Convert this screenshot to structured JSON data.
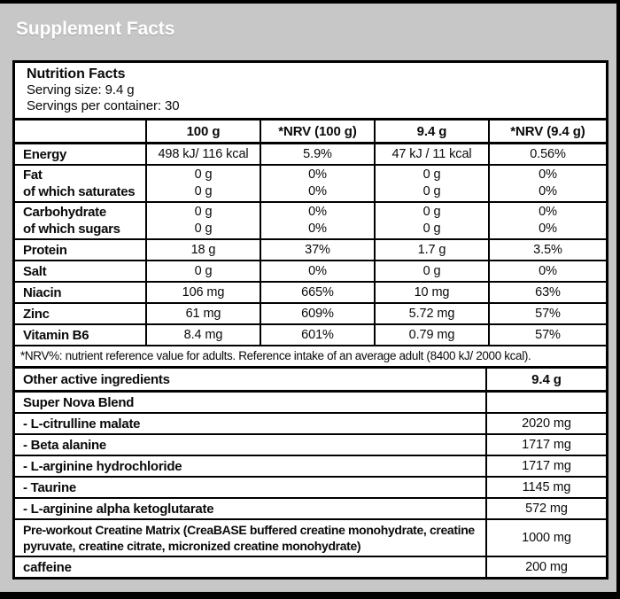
{
  "page": {
    "title": "Supplement Facts"
  },
  "colors": {
    "background": "#c7c7c7",
    "frame": "#000000",
    "panel": "#ffffff",
    "title_text": "#ffffff",
    "body_text": "#0a0a0a"
  },
  "nutrition": {
    "title": "Nutrition Facts",
    "serving_size": "Serving size: 9.4 g",
    "servings_per_container": "Servings per container: 30",
    "columns": [
      "",
      "100 g",
      "*NRV (100 g)",
      "9.4 g",
      "*NRV (9.4 g)"
    ],
    "rows": [
      {
        "lines": [
          {
            "label": "Energy",
            "values": [
              "498 kJ/ 116 kcal",
              "5.9%",
              "47 kJ / 11 kcal",
              "0.56%"
            ]
          }
        ]
      },
      {
        "lines": [
          {
            "label": "Fat",
            "values": [
              "0 g",
              "0%",
              "0 g",
              "0%"
            ]
          },
          {
            "label": "of which saturates",
            "values": [
              "0 g",
              "0%",
              "0 g",
              "0%"
            ]
          }
        ]
      },
      {
        "lines": [
          {
            "label": "Carbohydrate",
            "values": [
              "0 g",
              "0%",
              "0 g",
              "0%"
            ]
          },
          {
            "label": "of which sugars",
            "values": [
              "0 g",
              "0%",
              "0 g",
              "0%"
            ]
          }
        ]
      },
      {
        "lines": [
          {
            "label": "Protein",
            "values": [
              "18 g",
              "37%",
              "1.7 g",
              "3.5%"
            ]
          }
        ]
      },
      {
        "lines": [
          {
            "label": "Salt",
            "values": [
              "0 g",
              "0%",
              "0 g",
              "0%"
            ]
          }
        ]
      },
      {
        "lines": [
          {
            "label": "Niacin",
            "values": [
              "106 mg",
              "665%",
              "10 mg",
              "63%"
            ]
          }
        ]
      },
      {
        "lines": [
          {
            "label": "Zinc",
            "values": [
              "61 mg",
              "609%",
              "5.72 mg",
              "57%"
            ]
          }
        ]
      },
      {
        "lines": [
          {
            "label": "Vitamin B6",
            "values": [
              "8.4 mg",
              "601%",
              "0.79 mg",
              "57%"
            ]
          }
        ]
      }
    ],
    "footnote": "*NRV%: nutrient reference value for adults. Reference intake of an average adult (8400 kJ/ 2000 kcal)."
  },
  "other_ingredients": {
    "header": {
      "label": "Other active ingredients",
      "value": "9.4 g"
    },
    "rows": [
      {
        "label": "Super Nova Blend",
        "value": ""
      },
      {
        "label": "- L-citrulline malate",
        "value": "2020 mg"
      },
      {
        "label": "- Beta alanine",
        "value": "1717 mg"
      },
      {
        "label": "- L-arginine hydrochloride",
        "value": "1717 mg"
      },
      {
        "label": "- Taurine",
        "value": "1145 mg"
      },
      {
        "label": "- L-arginine alpha ketoglutarate",
        "value": "572 mg"
      },
      {
        "label": "Pre-workout Creatine Matrix (CreaBASE buffered creatine monohydrate, creatine pyruvate, creatine citrate, micronized creatine monohydrate)",
        "value": "1000 mg"
      },
      {
        "label": "caffeine",
        "value": "200 mg"
      }
    ]
  }
}
